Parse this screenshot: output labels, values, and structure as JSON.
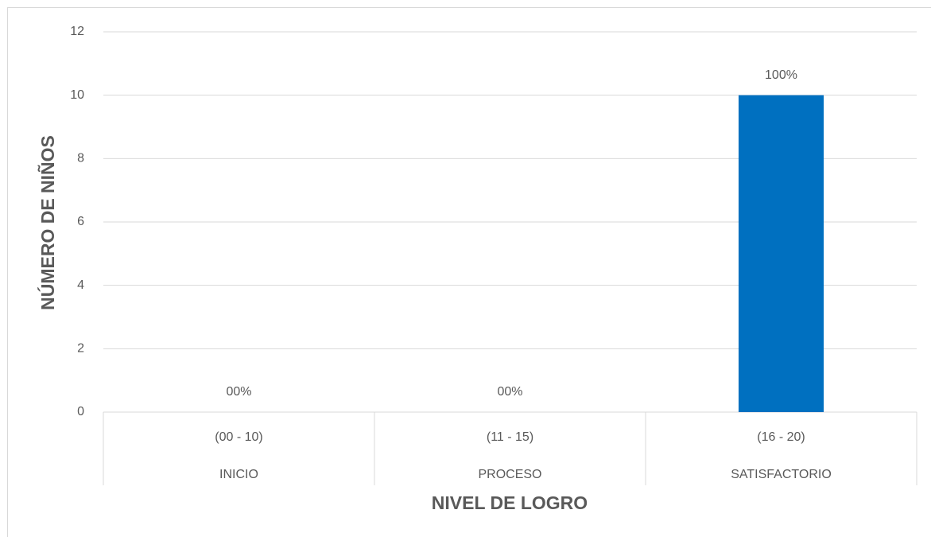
{
  "chart_data": {
    "type": "bar",
    "xlabel": "NIVEL DE LOGRO",
    "ylabel": "NÚMERO DE NIÑOS",
    "categories": [
      "(00 - 10)",
      "(11 - 15)",
      "(16 - 20)"
    ],
    "groups": [
      "INICIO",
      "PROCESO",
      "SATISFACTORIO"
    ],
    "values": [
      0,
      0,
      10
    ],
    "value_labels": [
      "00%",
      "00%",
      "100%"
    ],
    "color": "#0070c0",
    "ylim": [
      0,
      12
    ],
    "yticks": [
      0,
      2,
      4,
      6,
      8,
      10,
      12
    ],
    "grid": true
  }
}
